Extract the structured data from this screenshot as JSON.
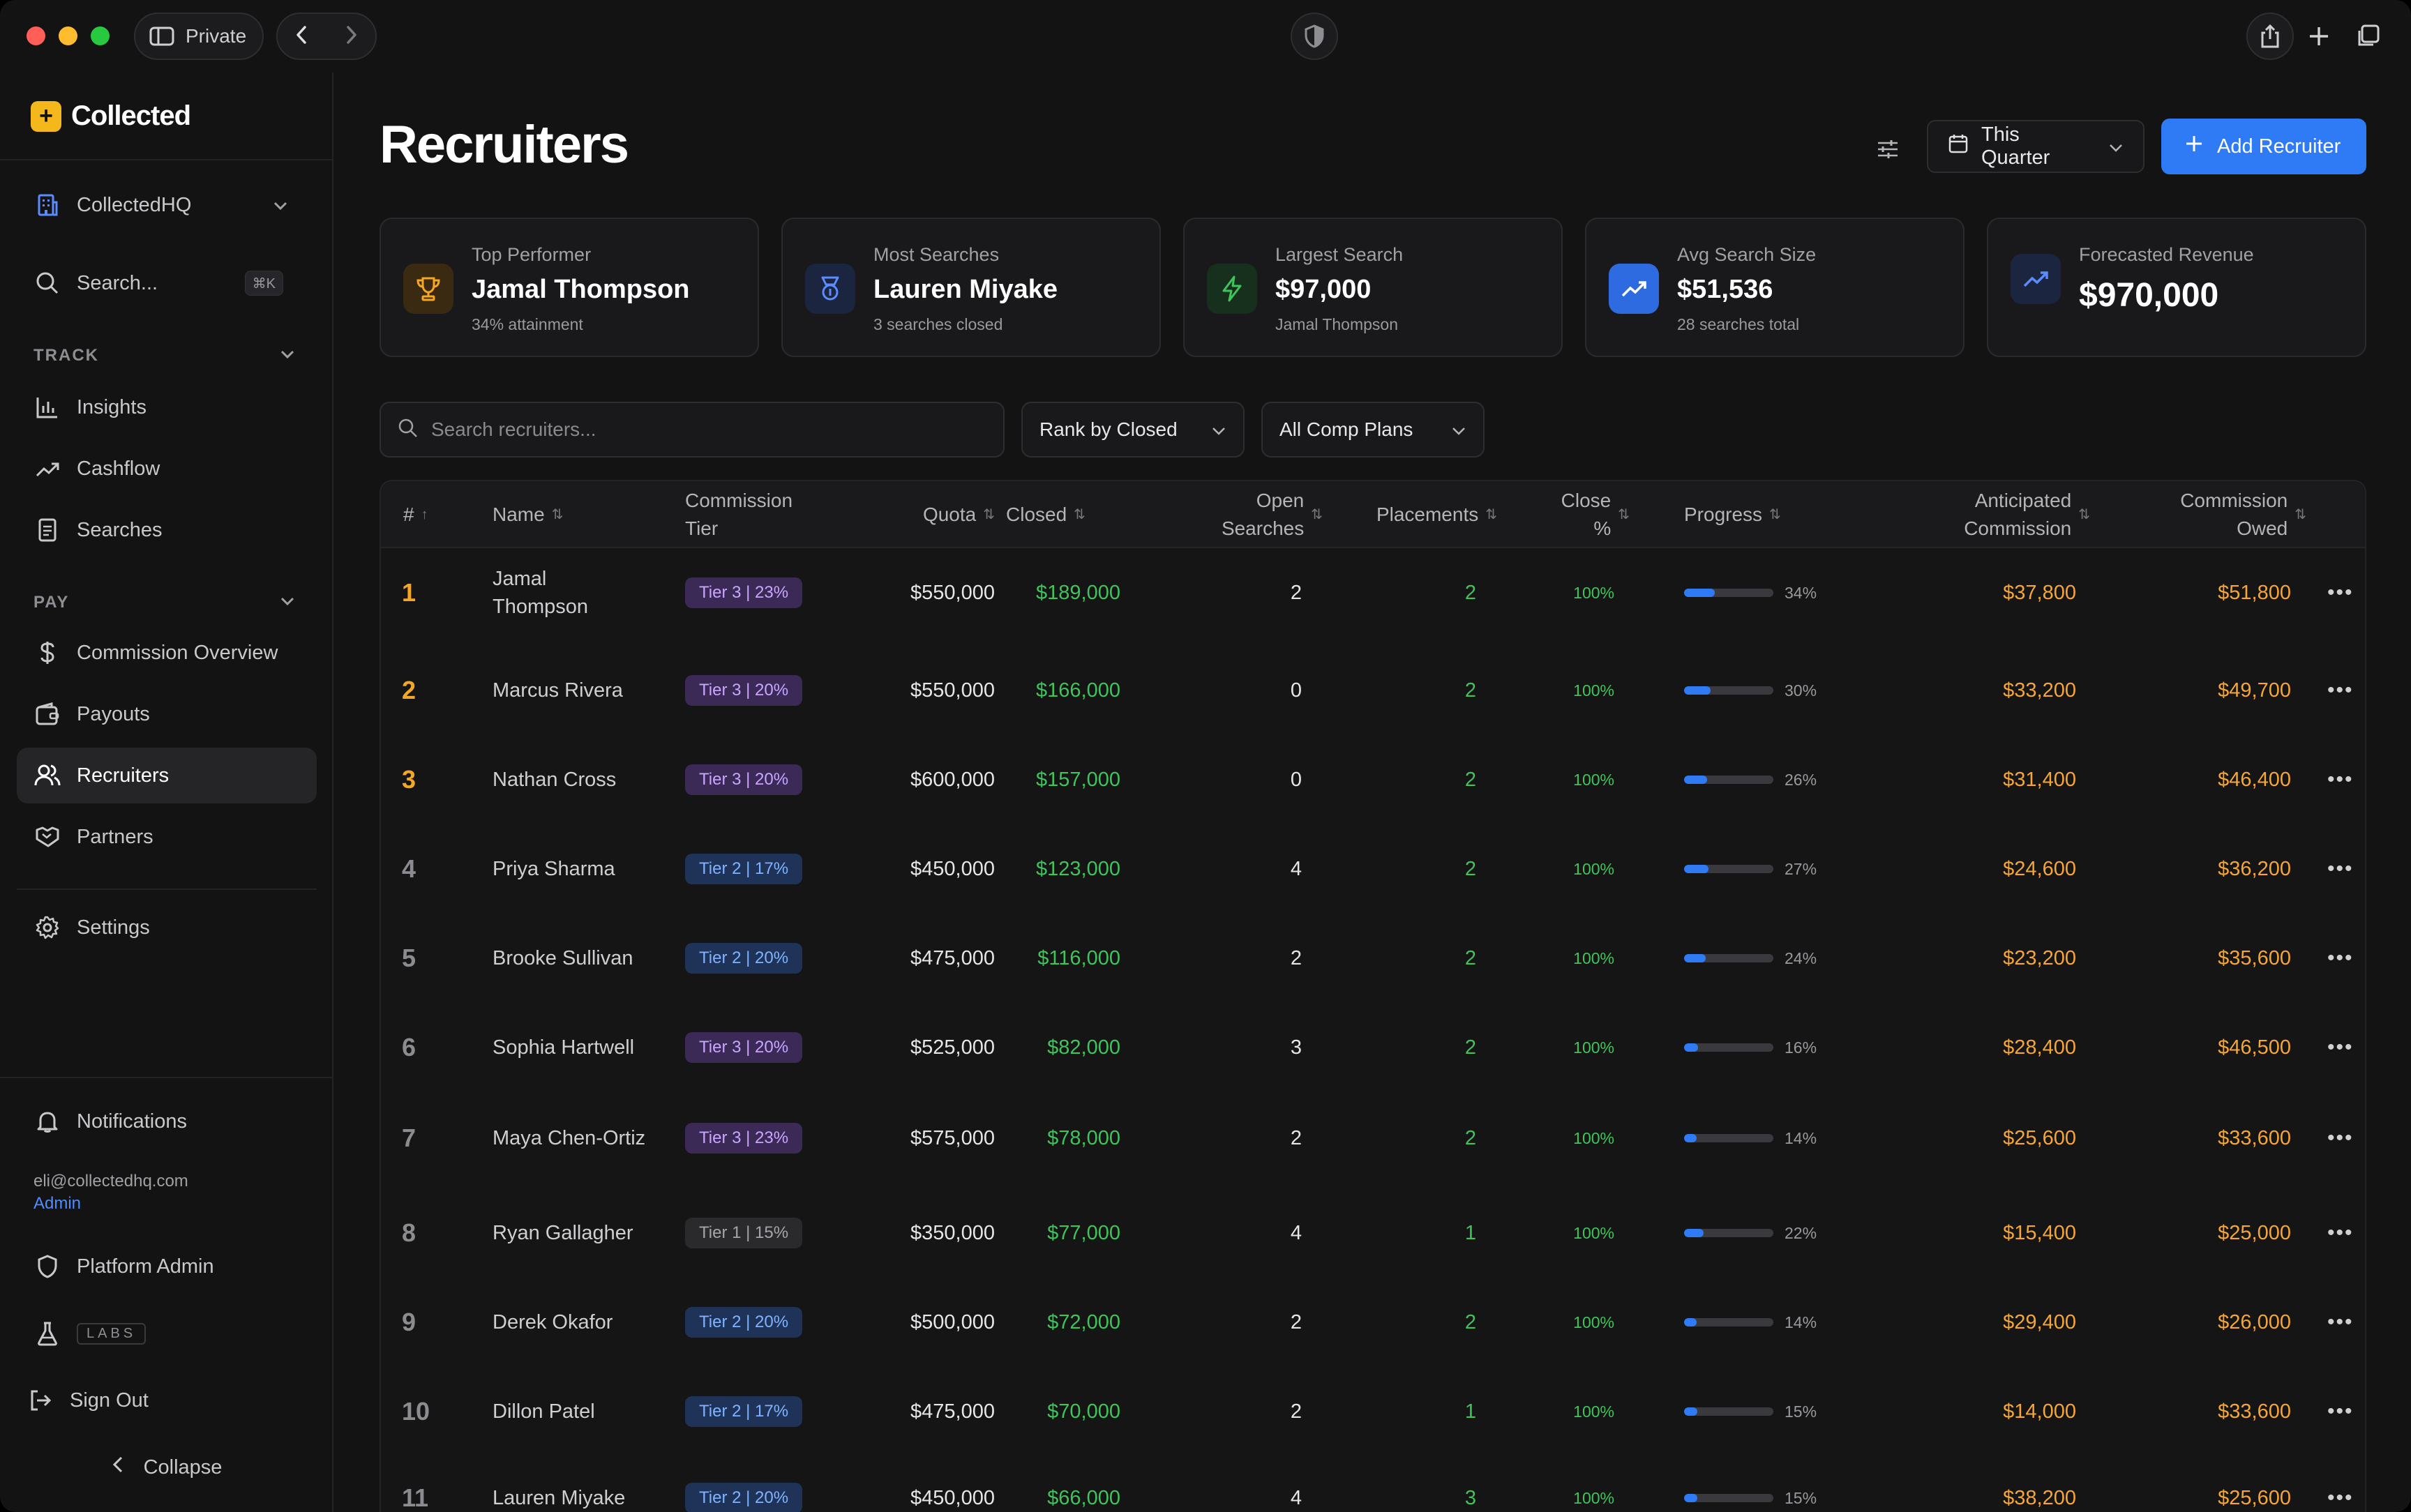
{
  "browser": {
    "private_label": "Private"
  },
  "sidebar": {
    "brand": "Collected",
    "org": "CollectedHQ",
    "search_label": "Search...",
    "search_shortcut": "⌘K",
    "track_label": "TRACK",
    "track_items": [
      {
        "label": "Insights",
        "icon": "bar-chart-icon"
      },
      {
        "label": "Cashflow",
        "icon": "trend-up-icon"
      },
      {
        "label": "Searches",
        "icon": "document-icon"
      }
    ],
    "pay_label": "PAY",
    "pay_items": [
      {
        "label": "Commission Overview",
        "icon": "dollar-icon"
      },
      {
        "label": "Payouts",
        "icon": "wallet-icon"
      },
      {
        "label": "Recruiters",
        "icon": "users-icon",
        "active": true
      },
      {
        "label": "Partners",
        "icon": "handshake-icon"
      }
    ],
    "settings_label": "Settings",
    "notifications_label": "Notifications",
    "user_email": "eli@collectedhq.com",
    "user_role": "Admin",
    "platform_admin_label": "Platform Admin",
    "labs_label": "LABS",
    "sign_out_label": "Sign Out",
    "collapse_label": "Collapse"
  },
  "header": {
    "title": "Recruiters",
    "period_label": "This Quarter",
    "add_label": "Add Recruiter"
  },
  "cards": [
    {
      "label": "Top Performer",
      "value": "Jamal Thompson",
      "sub": "34% attainment",
      "icon": "trophy-icon",
      "color": "#f5a623"
    },
    {
      "label": "Most Searches",
      "value": "Lauren Miyake",
      "sub": "3 searches closed",
      "icon": "award-icon",
      "color": "#5b8cff"
    },
    {
      "label": "Largest Search",
      "value": "$97,000",
      "sub": "Jamal Thompson",
      "icon": "bolt-icon",
      "color": "#3fc45a"
    },
    {
      "label": "Avg Search Size",
      "value": "$51,536",
      "sub": "28 searches total",
      "icon": "trend-up-icon",
      "color": "#ffffff"
    },
    {
      "label": "Forecasted Revenue",
      "value": "$970,000",
      "sub": "",
      "icon": "trend-up-icon",
      "color": "#5b8cff"
    }
  ],
  "filters": {
    "search_placeholder": "Search recruiters...",
    "rank_label": "Rank by Closed",
    "plans_label": "All Comp Plans"
  },
  "table": {
    "headers": {
      "rank": "#",
      "name": "Name",
      "tier": "Commission Tier",
      "quota": "Quota",
      "closed": "Closed",
      "open": "Open Searches",
      "placements": "Placements",
      "close_pct": "Close %",
      "progress": "Progress",
      "anticipated": "Anticipated Commission",
      "owed": "Commission Owed"
    },
    "rows": [
      {
        "rank": "1",
        "name": "Jamal Thompson",
        "tier": "Tier 3 | 23%",
        "tier_level": 3,
        "quota": "$550,000",
        "closed": "$189,000",
        "open": "2",
        "placements": "2",
        "close_pct": "100%",
        "progress": 34,
        "progress_label": "34%",
        "anticipated": "$37,800",
        "owed": "$51,800"
      },
      {
        "rank": "2",
        "name": "Marcus Rivera",
        "tier": "Tier 3 | 20%",
        "tier_level": 3,
        "quota": "$550,000",
        "closed": "$166,000",
        "open": "0",
        "placements": "2",
        "close_pct": "100%",
        "progress": 30,
        "progress_label": "30%",
        "anticipated": "$33,200",
        "owed": "$49,700"
      },
      {
        "rank": "3",
        "name": "Nathan Cross",
        "tier": "Tier 3 | 20%",
        "tier_level": 3,
        "quota": "$600,000",
        "closed": "$157,000",
        "open": "0",
        "placements": "2",
        "close_pct": "100%",
        "progress": 26,
        "progress_label": "26%",
        "anticipated": "$31,400",
        "owed": "$46,400"
      },
      {
        "rank": "4",
        "name": "Priya Sharma",
        "tier": "Tier 2 | 17%",
        "tier_level": 2,
        "quota": "$450,000",
        "closed": "$123,000",
        "open": "4",
        "placements": "2",
        "close_pct": "100%",
        "progress": 27,
        "progress_label": "27%",
        "anticipated": "$24,600",
        "owed": "$36,200"
      },
      {
        "rank": "5",
        "name": "Brooke Sullivan",
        "tier": "Tier 2 | 20%",
        "tier_level": 2,
        "quota": "$475,000",
        "closed": "$116,000",
        "open": "2",
        "placements": "2",
        "close_pct": "100%",
        "progress": 24,
        "progress_label": "24%",
        "anticipated": "$23,200",
        "owed": "$35,600"
      },
      {
        "rank": "6",
        "name": "Sophia Hartwell",
        "tier": "Tier 3 | 20%",
        "tier_level": 3,
        "quota": "$525,000",
        "closed": "$82,000",
        "open": "3",
        "placements": "2",
        "close_pct": "100%",
        "progress": 16,
        "progress_label": "16%",
        "anticipated": "$28,400",
        "owed": "$46,500"
      },
      {
        "rank": "7",
        "name": "Maya Chen-Ortiz",
        "tier": "Tier 3 | 23%",
        "tier_level": 3,
        "quota": "$575,000",
        "closed": "$78,000",
        "open": "2",
        "placements": "2",
        "close_pct": "100%",
        "progress": 14,
        "progress_label": "14%",
        "anticipated": "$25,600",
        "owed": "$33,600"
      },
      {
        "rank": "8",
        "name": "Ryan Gallagher",
        "tier": "Tier 1 | 15%",
        "tier_level": 1,
        "quota": "$350,000",
        "closed": "$77,000",
        "open": "4",
        "placements": "1",
        "close_pct": "100%",
        "progress": 22,
        "progress_label": "22%",
        "anticipated": "$15,400",
        "owed": "$25,000"
      },
      {
        "rank": "9",
        "name": "Derek Okafor",
        "tier": "Tier 2 | 20%",
        "tier_level": 2,
        "quota": "$500,000",
        "closed": "$72,000",
        "open": "2",
        "placements": "2",
        "close_pct": "100%",
        "progress": 14,
        "progress_label": "14%",
        "anticipated": "$29,400",
        "owed": "$26,000"
      },
      {
        "rank": "10",
        "name": "Dillon Patel",
        "tier": "Tier 2 | 17%",
        "tier_level": 2,
        "quota": "$475,000",
        "closed": "$70,000",
        "open": "2",
        "placements": "1",
        "close_pct": "100%",
        "progress": 15,
        "progress_label": "15%",
        "anticipated": "$14,000",
        "owed": "$33,600"
      },
      {
        "rank": "11",
        "name": "Lauren Miyake",
        "tier": "Tier 2 | 20%",
        "tier_level": 2,
        "quota": "$450,000",
        "closed": "$66,000",
        "open": "4",
        "placements": "3",
        "close_pct": "100%",
        "progress": 15,
        "progress_label": "15%",
        "anticipated": "$38,200",
        "owed": "$25,600"
      }
    ]
  }
}
